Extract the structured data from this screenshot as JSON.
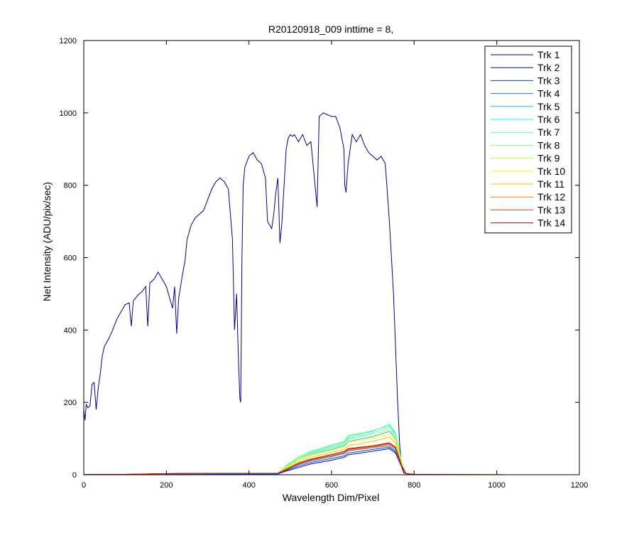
{
  "chart_data": {
    "type": "line",
    "title": "R20120918_009 inttime = 8,",
    "xlabel": "Wavelength Dim/Pixel",
    "ylabel": "Net Intensity (ADU/pix/sec)",
    "xlim": [
      0,
      1200
    ],
    "ylim": [
      0,
      1200
    ],
    "xticks": [
      "0",
      "200",
      "400",
      "600",
      "800",
      "1000",
      "1200"
    ],
    "yticks": [
      "0",
      "200",
      "400",
      "600",
      "800",
      "1000",
      "1200"
    ],
    "grid": false,
    "legend_position": "top-right",
    "series": [
      {
        "name": "Trk 1",
        "color": "#00008F",
        "x": [
          0,
          3,
          6,
          10,
          15,
          20,
          25,
          30,
          35,
          40,
          45,
          50,
          60,
          70,
          80,
          90,
          100,
          110,
          115,
          120,
          130,
          140,
          150,
          155,
          160,
          170,
          180,
          190,
          200,
          210,
          215,
          220,
          225,
          230,
          240,
          245,
          250,
          260,
          270,
          280,
          290,
          300,
          310,
          320,
          330,
          340,
          350,
          360,
          365,
          370,
          375,
          378,
          380,
          383,
          386,
          390,
          400,
          410,
          420,
          430,
          440,
          445,
          450,
          455,
          460,
          465,
          470,
          475,
          480,
          485,
          490,
          495,
          500,
          505,
          510,
          520,
          530,
          540,
          550,
          555,
          560,
          565,
          570,
          580,
          590,
          600,
          610,
          620,
          630,
          632,
          635,
          640,
          650,
          660,
          670,
          680,
          690,
          700,
          710,
          720,
          730,
          740,
          750,
          755,
          760,
          765,
          770,
          775,
          780,
          790,
          800,
          850,
          900,
          950,
          1000,
          1024
        ],
        "y": [
          180,
          150,
          195,
          185,
          190,
          250,
          255,
          180,
          240,
          280,
          330,
          355,
          375,
          400,
          430,
          450,
          470,
          475,
          410,
          480,
          495,
          505,
          520,
          410,
          530,
          540,
          560,
          540,
          520,
          480,
          460,
          520,
          390,
          490,
          560,
          590,
          650,
          690,
          710,
          720,
          730,
          760,
          790,
          810,
          820,
          810,
          790,
          650,
          400,
          500,
          300,
          210,
          200,
          600,
          800,
          850,
          880,
          890,
          870,
          860,
          820,
          700,
          690,
          680,
          720,
          780,
          820,
          640,
          700,
          800,
          900,
          930,
          940,
          935,
          940,
          920,
          940,
          910,
          920,
          860,
          800,
          740,
          990,
          1000,
          995,
          990,
          990,
          960,
          900,
          800,
          780,
          860,
          940,
          920,
          940,
          910,
          890,
          880,
          870,
          880,
          860,
          700,
          500,
          350,
          200,
          80,
          20,
          5,
          3,
          2,
          1,
          1,
          0,
          0,
          0,
          0
        ]
      },
      {
        "name": "Trk 2",
        "color": "#0000C8",
        "x": [
          0,
          100,
          200,
          300,
          400,
          470,
          490,
          520,
          550,
          600,
          630,
          640,
          700,
          740,
          755,
          770,
          780,
          800,
          1024
        ],
        "y": [
          1,
          1,
          2,
          2,
          2,
          2,
          10,
          20,
          30,
          40,
          48,
          55,
          65,
          72,
          60,
          20,
          3,
          1,
          0
        ]
      },
      {
        "name": "Trk 3",
        "color": "#0040FF",
        "x": [
          0,
          100,
          200,
          300,
          400,
          470,
          490,
          520,
          550,
          600,
          630,
          640,
          700,
          740,
          755,
          770,
          780,
          800,
          1024
        ],
        "y": [
          1,
          1,
          2,
          2,
          2,
          2,
          12,
          24,
          34,
          45,
          52,
          60,
          70,
          76,
          64,
          22,
          3,
          1,
          0
        ]
      },
      {
        "name": "Trk 4",
        "color": "#0080FF",
        "x": [
          0,
          100,
          200,
          300,
          400,
          470,
          490,
          520,
          550,
          600,
          630,
          640,
          700,
          740,
          755,
          770,
          780,
          800,
          1024
        ],
        "y": [
          1,
          1,
          2,
          3,
          3,
          3,
          14,
          28,
          38,
          50,
          58,
          66,
          75,
          80,
          68,
          24,
          3,
          1,
          0
        ]
      },
      {
        "name": "Trk 5",
        "color": "#00C0FF",
        "x": [
          0,
          100,
          200,
          300,
          400,
          470,
          490,
          520,
          550,
          600,
          630,
          640,
          700,
          740,
          755,
          770,
          780,
          800,
          1024
        ],
        "y": [
          1,
          1,
          3,
          4,
          4,
          4,
          20,
          40,
          55,
          70,
          80,
          92,
          105,
          120,
          100,
          30,
          4,
          1,
          0
        ]
      },
      {
        "name": "Trk 6",
        "color": "#10FFEF",
        "x": [
          0,
          100,
          200,
          300,
          400,
          470,
          490,
          520,
          550,
          600,
          630,
          640,
          700,
          740,
          755,
          770,
          780,
          800,
          1024
        ],
        "y": [
          1,
          1,
          3,
          4,
          4,
          4,
          24,
          46,
          62,
          80,
          90,
          105,
          120,
          140,
          115,
          35,
          4,
          1,
          0
        ]
      },
      {
        "name": "Trk 7",
        "color": "#40FFC0",
        "x": [
          0,
          100,
          200,
          300,
          400,
          470,
          490,
          520,
          550,
          600,
          630,
          640,
          700,
          740,
          755,
          770,
          780,
          800,
          1024
        ],
        "y": [
          1,
          1,
          3,
          4,
          4,
          4,
          22,
          44,
          60,
          76,
          86,
          100,
          115,
          132,
          110,
          33,
          4,
          1,
          0
        ]
      },
      {
        "name": "Trk 8",
        "color": "#80FF80",
        "x": [
          0,
          100,
          200,
          300,
          400,
          470,
          490,
          520,
          550,
          600,
          630,
          640,
          700,
          740,
          755,
          770,
          780,
          800,
          1024
        ],
        "y": [
          1,
          1,
          3,
          4,
          4,
          4,
          26,
          50,
          65,
          82,
          92,
          108,
          122,
          136,
          112,
          34,
          4,
          1,
          0
        ]
      },
      {
        "name": "Trk 9",
        "color": "#C0FF40",
        "x": [
          0,
          100,
          200,
          300,
          400,
          470,
          490,
          520,
          550,
          600,
          630,
          640,
          700,
          740,
          755,
          770,
          780,
          800,
          1024
        ],
        "y": [
          1,
          1,
          3,
          4,
          4,
          4,
          22,
          44,
          58,
          74,
          84,
          98,
          110,
          125,
          104,
          31,
          4,
          1,
          0
        ]
      },
      {
        "name": "Trk 10",
        "color": "#FFFF00",
        "x": [
          0,
          100,
          200,
          300,
          400,
          470,
          490,
          520,
          550,
          600,
          630,
          640,
          700,
          740,
          755,
          770,
          780,
          800,
          1024
        ],
        "y": [
          1,
          1,
          3,
          4,
          4,
          4,
          20,
          40,
          54,
          68,
          76,
          88,
          100,
          112,
          94,
          28,
          4,
          1,
          0
        ]
      },
      {
        "name": "Trk 11",
        "color": "#FFC000",
        "x": [
          0,
          100,
          200,
          300,
          400,
          470,
          490,
          520,
          550,
          600,
          630,
          640,
          700,
          740,
          755,
          770,
          780,
          800,
          1024
        ],
        "y": [
          1,
          1,
          3,
          4,
          4,
          4,
          18,
          36,
          48,
          62,
          70,
          80,
          92,
          104,
          88,
          26,
          4,
          1,
          0
        ]
      },
      {
        "name": "Trk 12",
        "color": "#FF8000",
        "x": [
          0,
          100,
          200,
          300,
          400,
          470,
          490,
          520,
          550,
          600,
          630,
          640,
          700,
          740,
          755,
          770,
          780,
          800,
          1024
        ],
        "y": [
          1,
          1,
          3,
          4,
          4,
          4,
          14,
          30,
          40,
          52,
          60,
          68,
          76,
          84,
          72,
          22,
          3,
          1,
          0
        ]
      },
      {
        "name": "Trk 13",
        "color": "#FF4000",
        "x": [
          0,
          100,
          200,
          300,
          400,
          470,
          490,
          520,
          550,
          600,
          630,
          640,
          700,
          740,
          755,
          770,
          780,
          800,
          1024
        ],
        "y": [
          1,
          1,
          3,
          4,
          4,
          4,
          14,
          30,
          41,
          53,
          61,
          70,
          78,
          86,
          74,
          23,
          3,
          1,
          0
        ]
      },
      {
        "name": "Trk 14",
        "color": "#C00000",
        "x": [
          0,
          100,
          200,
          300,
          400,
          470,
          490,
          520,
          550,
          600,
          630,
          640,
          700,
          740,
          755,
          770,
          780,
          800,
          1024
        ],
        "y": [
          1,
          1,
          3,
          4,
          4,
          4,
          15,
          32,
          43,
          56,
          64,
          72,
          80,
          88,
          76,
          24,
          3,
          1,
          0
        ]
      }
    ]
  }
}
